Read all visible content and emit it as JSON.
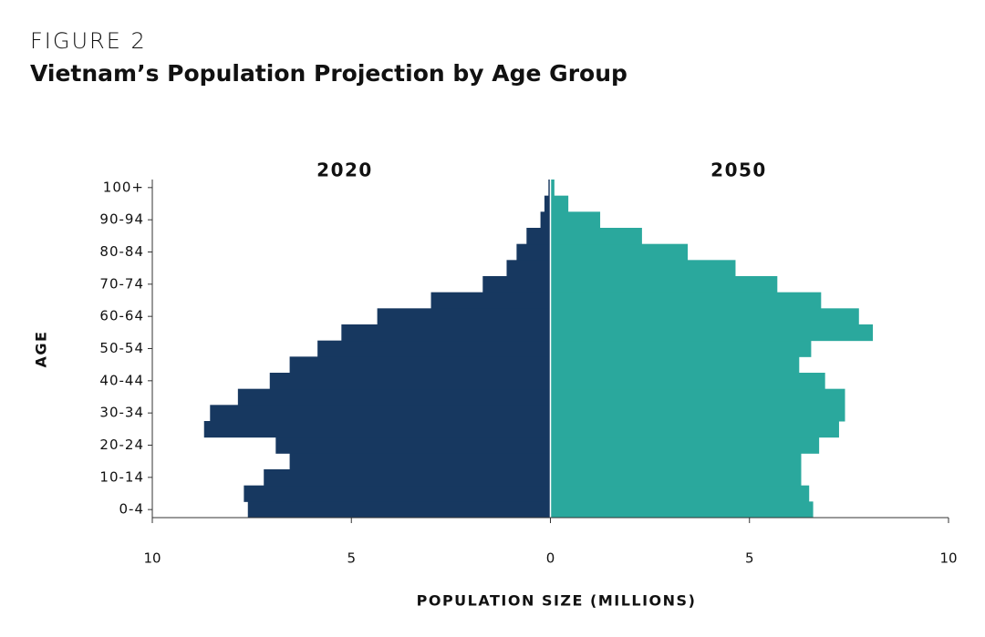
{
  "chart_data": {
    "type": "population_pyramid",
    "figure_label": "FIGURE 2",
    "title": "Vietnam’s Population Projection by Age Group",
    "y_label": "AGE",
    "x_label": "POPULATION SIZE (MILLIONS)",
    "categories": [
      "0-4",
      null,
      "10-14",
      null,
      "20-24",
      null,
      "30-34",
      null,
      "40-44",
      null,
      "50-54",
      null,
      "60-64",
      null,
      "70-74",
      null,
      "80-84",
      null,
      "90-94",
      null,
      "100+"
    ],
    "series": [
      {
        "name": "2020",
        "color": "#173860",
        "values": [
          7.6,
          7.7,
          7.2,
          6.55,
          6.9,
          8.7,
          8.55,
          7.85,
          7.05,
          6.55,
          5.85,
          5.25,
          4.35,
          3.0,
          1.7,
          1.1,
          0.85,
          0.6,
          0.25,
          0.15,
          0.05
        ]
      },
      {
        "name": "2050",
        "color": "#2aa89d",
        "values": [
          6.6,
          6.5,
          6.3,
          6.3,
          6.75,
          7.25,
          7.4,
          7.4,
          6.9,
          6.25,
          6.55,
          8.1,
          7.75,
          6.8,
          5.7,
          4.65,
          3.45,
          2.3,
          1.25,
          0.45,
          0.1
        ]
      }
    ],
    "xlim": [
      -10,
      10
    ],
    "xticks": [
      {
        "value": -10,
        "label": "10"
      },
      {
        "value": -5,
        "label": "5"
      },
      0,
      5,
      10
    ]
  }
}
